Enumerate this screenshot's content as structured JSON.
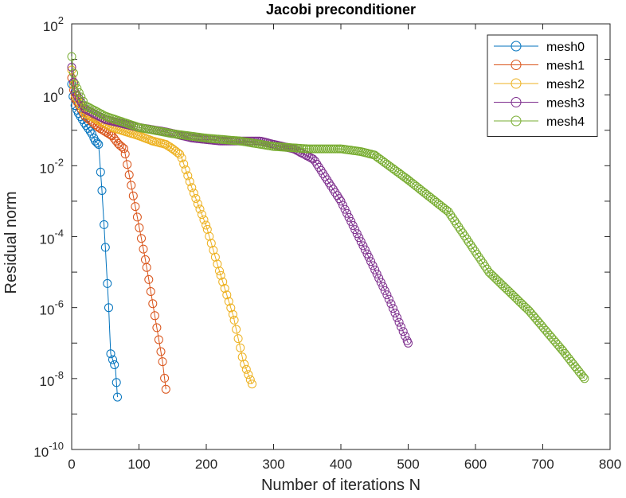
{
  "chart_data": {
    "type": "line",
    "title": "Jacobi preconditioner",
    "xlabel": "Number of iterations N",
    "ylabel": "Residual norm",
    "xlim": [
      0,
      800
    ],
    "ylim": [
      1e-10,
      100
    ],
    "yscale": "log",
    "xticks": [
      "0",
      "100",
      "200",
      "300",
      "400",
      "500",
      "600",
      "700",
      "800"
    ],
    "yticks": [
      {
        "base": "10",
        "exp": "2"
      },
      {
        "base": "10",
        "exp": "0"
      },
      {
        "base": "10",
        "exp": "-2"
      },
      {
        "base": "10",
        "exp": "-4"
      },
      {
        "base": "10",
        "exp": "-6"
      },
      {
        "base": "10",
        "exp": "-8"
      },
      {
        "base": "10",
        "exp": "-10"
      }
    ],
    "grid": false,
    "legend_position": "top-right",
    "marker": "circle",
    "series": [
      {
        "name": "mesh0",
        "color": "#0072BD",
        "x": [
          0,
          2,
          5,
          10,
          20,
          30,
          35,
          40,
          45,
          50,
          55,
          58,
          62,
          65,
          68
        ],
        "y": [
          2.0,
          0.9,
          0.5,
          0.3,
          0.15,
          0.08,
          0.05,
          0.04,
          0.002,
          5e-05,
          1e-06,
          5e-08,
          3e-08,
          2e-08,
          3e-09
        ]
      },
      {
        "name": "mesh1",
        "color": "#D95319",
        "x": [
          0,
          5,
          20,
          40,
          60,
          70,
          78,
          90,
          110,
          125,
          135,
          140
        ],
        "y": [
          3.0,
          0.8,
          0.25,
          0.12,
          0.07,
          0.04,
          0.03,
          0.002,
          2e-05,
          4e-07,
          3e-08,
          5e-09
        ]
      },
      {
        "name": "mesh2",
        "color": "#EDB120",
        "x": [
          0,
          5,
          20,
          60,
          100,
          120,
          140,
          150,
          162,
          180,
          200,
          220,
          240,
          255,
          268
        ],
        "y": [
          5.0,
          1.0,
          0.3,
          0.12,
          0.07,
          0.05,
          0.04,
          0.03,
          0.02,
          0.002,
          0.0002,
          1e-05,
          6e-07,
          3e-08,
          7e-09
        ]
      },
      {
        "name": "mesh3",
        "color": "#7E2F8E",
        "x": [
          0,
          5,
          20,
          50,
          100,
          140,
          180,
          220,
          280,
          300,
          330,
          360,
          400,
          440,
          470,
          500
        ],
        "y": [
          6.0,
          1.2,
          0.4,
          0.2,
          0.12,
          0.09,
          0.06,
          0.05,
          0.05,
          0.04,
          0.03,
          0.015,
          0.001,
          3e-05,
          2e-06,
          1e-07
        ]
      },
      {
        "name": "mesh4",
        "color": "#77AC30",
        "x": [
          0,
          5,
          20,
          50,
          100,
          150,
          200,
          250,
          300,
          350,
          400,
          430,
          450,
          500,
          560,
          620,
          680,
          730,
          762
        ],
        "y": [
          12.0,
          2.0,
          0.5,
          0.25,
          0.12,
          0.08,
          0.06,
          0.05,
          0.035,
          0.03,
          0.03,
          0.025,
          0.02,
          0.004,
          0.0005,
          1e-05,
          8e-07,
          6e-08,
          1e-08
        ]
      }
    ]
  }
}
